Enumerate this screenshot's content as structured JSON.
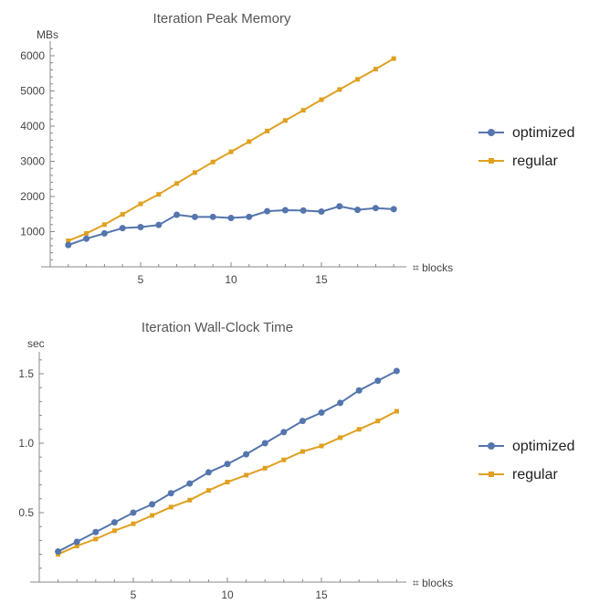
{
  "colors": {
    "optimized": "#5475ad",
    "regular": "#e0a020",
    "axis": "#888888"
  },
  "chart_data": [
    {
      "type": "line",
      "title": "Iteration Peak Memory",
      "xlabel": "⌗ blocks",
      "ylabel": "MBs",
      "xlim": [
        0,
        19.5
      ],
      "ylim": [
        0,
        6300
      ],
      "x_ticks": [
        "5",
        "10",
        "15"
      ],
      "y_ticks": [
        "1000",
        "2000",
        "3000",
        "4000",
        "5000",
        "6000"
      ],
      "legend_position": "right",
      "x": [
        1,
        2,
        3,
        4,
        5,
        6,
        7,
        8,
        9,
        10,
        11,
        12,
        13,
        14,
        15,
        16,
        17,
        18,
        19
      ],
      "series": [
        {
          "name": "optimized",
          "marker": "circle",
          "values": [
            620,
            800,
            950,
            1100,
            1130,
            1190,
            1480,
            1420,
            1420,
            1390,
            1420,
            1580,
            1610,
            1600,
            1570,
            1720,
            1620,
            1670,
            1640
          ]
        },
        {
          "name": "regular",
          "marker": "square",
          "values": [
            740,
            950,
            1200,
            1490,
            1790,
            2060,
            2370,
            2680,
            2980,
            3270,
            3560,
            3860,
            4160,
            4450,
            4750,
            5040,
            5330,
            5620,
            5920
          ]
        }
      ]
    },
    {
      "type": "line",
      "title": "Iteration Wall-Clock Time",
      "xlabel": "⌗ blocks",
      "ylabel": "sec",
      "xlim": [
        0,
        19.5
      ],
      "ylim": [
        0,
        1.65
      ],
      "x_ticks": [
        "5",
        "10",
        "15"
      ],
      "y_ticks": [
        "0.5",
        "1.0",
        "1.5"
      ],
      "legend_position": "right",
      "x": [
        1,
        2,
        3,
        4,
        5,
        6,
        7,
        8,
        9,
        10,
        11,
        12,
        13,
        14,
        15,
        16,
        17,
        18,
        19
      ],
      "series": [
        {
          "name": "optimized",
          "marker": "circle",
          "values": [
            0.22,
            0.29,
            0.36,
            0.43,
            0.5,
            0.56,
            0.64,
            0.71,
            0.79,
            0.85,
            0.92,
            1.0,
            1.08,
            1.16,
            1.22,
            1.29,
            1.38,
            1.45,
            1.52
          ]
        },
        {
          "name": "regular",
          "marker": "square",
          "values": [
            0.2,
            0.26,
            0.31,
            0.37,
            0.42,
            0.48,
            0.54,
            0.59,
            0.66,
            0.72,
            0.77,
            0.82,
            0.88,
            0.94,
            0.98,
            1.04,
            1.1,
            1.16,
            1.23
          ]
        }
      ]
    }
  ]
}
